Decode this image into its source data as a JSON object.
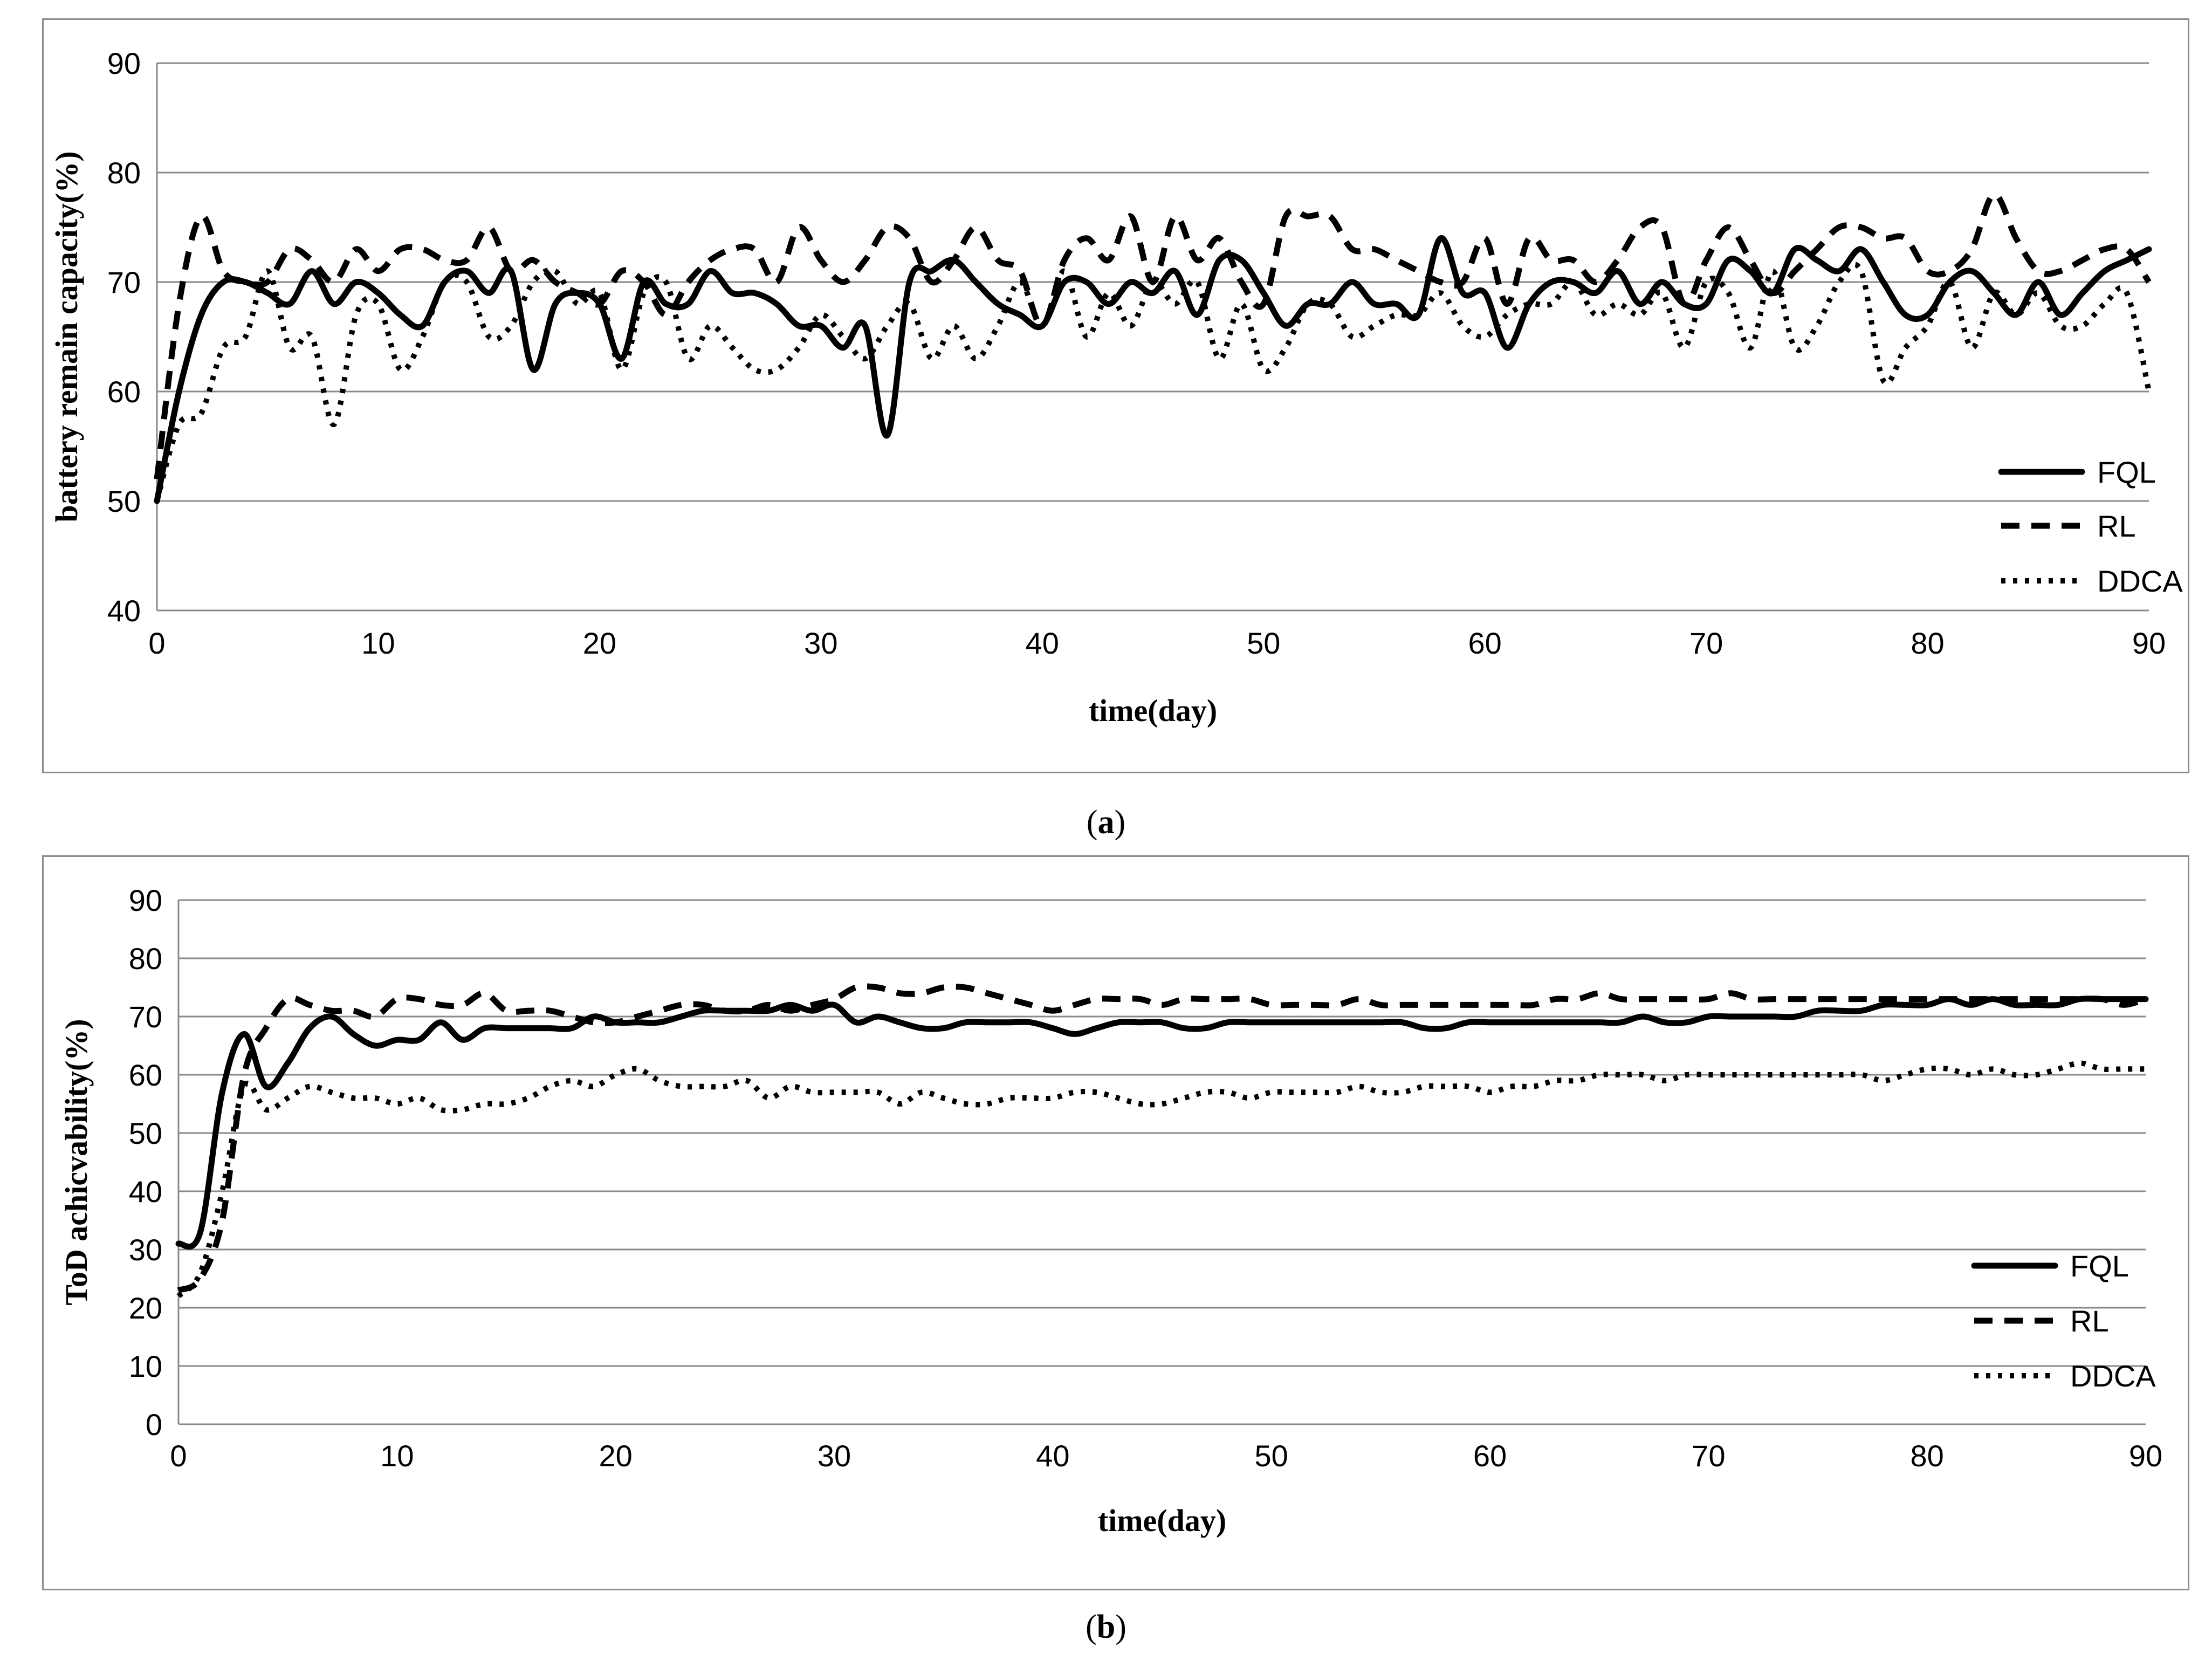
{
  "captions": {
    "a_open": "(",
    "a_letter": "a",
    "a_close": ")",
    "b_open": "(",
    "b_letter": "b",
    "b_close": ")"
  },
  "chart_data": [
    {
      "type": "line",
      "panel": "a",
      "xlabel": "time(day)",
      "ylabel": "battery remain  capacity(%)",
      "xlim": [
        0,
        90
      ],
      "ylim": [
        40,
        90
      ],
      "xticks": [
        0,
        10,
        20,
        30,
        40,
        50,
        60,
        70,
        80,
        90
      ],
      "yticks": [
        40,
        50,
        60,
        70,
        80,
        90
      ],
      "grid": "horizontal",
      "legend": "bottom-right",
      "series": [
        {
          "name": "FQL",
          "style": "solid",
          "x": [
            0,
            1,
            2,
            3,
            4,
            5,
            6,
            7,
            8,
            9,
            10,
            11,
            12,
            13,
            14,
            15,
            16,
            17,
            18,
            19,
            20,
            21,
            22,
            23,
            24,
            25,
            26,
            27,
            28,
            29,
            30,
            31,
            32,
            33,
            34,
            35,
            36,
            37,
            38,
            39,
            40,
            41,
            42,
            43,
            44,
            45,
            46,
            47,
            48,
            49,
            50,
            51,
            52,
            53,
            54,
            55,
            56,
            57,
            58,
            59,
            60,
            61,
            62,
            63,
            64,
            65,
            66,
            67,
            68,
            69,
            70,
            71,
            72,
            73,
            74,
            75,
            76,
            77,
            78,
            79,
            80,
            81,
            82,
            83,
            84,
            85,
            86,
            87,
            88,
            89,
            90
          ],
          "y": [
            50,
            60,
            67,
            70,
            70,
            69,
            68,
            71,
            68,
            70,
            69,
            67,
            66,
            70,
            71,
            69,
            71,
            62,
            68,
            69,
            68,
            63,
            70,
            68,
            68,
            71,
            69,
            69,
            68,
            66,
            66,
            64,
            66,
            56,
            70,
            71,
            72,
            70,
            68,
            67,
            66,
            70,
            70,
            68,
            70,
            69,
            71,
            67,
            72,
            72,
            69,
            66,
            68,
            68,
            70,
            68,
            68,
            67,
            74,
            69,
            69,
            64,
            68,
            70,
            70,
            69,
            71,
            68,
            70,
            68,
            68,
            72,
            71,
            69,
            73,
            72,
            71,
            73,
            70,
            67,
            67,
            70,
            71,
            69,
            67,
            70,
            67,
            69,
            71,
            72,
            73
          ]
        },
        {
          "name": "RL",
          "style": "dashed",
          "x": [
            0,
            1,
            2,
            3,
            4,
            5,
            6,
            7,
            8,
            9,
            10,
            11,
            12,
            13,
            14,
            15,
            16,
            17,
            18,
            19,
            20,
            21,
            22,
            23,
            24,
            25,
            26,
            27,
            28,
            29,
            30,
            31,
            32,
            33,
            34,
            35,
            36,
            37,
            38,
            39,
            40,
            41,
            42,
            43,
            44,
            45,
            46,
            47,
            48,
            49,
            50,
            51,
            52,
            53,
            54,
            55,
            56,
            57,
            58,
            59,
            60,
            61,
            62,
            63,
            64,
            65,
            66,
            67,
            68,
            69,
            70,
            71,
            72,
            73,
            74,
            75,
            76,
            77,
            78,
            79,
            80,
            81,
            82,
            83,
            84,
            85,
            86,
            87,
            88,
            89,
            90
          ],
          "y": [
            52,
            68,
            76,
            71,
            70,
            70,
            73,
            72,
            70,
            73,
            71,
            73,
            73,
            72,
            72,
            75,
            71,
            72,
            70,
            69,
            68,
            71,
            70,
            67,
            70,
            72,
            73,
            73,
            70,
            75,
            72,
            70,
            72,
            75,
            74,
            70,
            72,
            75,
            72,
            71,
            66,
            72,
            74,
            72,
            76,
            70,
            76,
            72,
            74,
            70,
            68,
            76,
            76,
            76,
            73,
            73,
            72,
            71,
            70,
            70,
            74,
            68,
            74,
            72,
            72,
            70,
            72,
            75,
            75,
            68,
            72,
            75,
            72,
            69,
            71,
            73,
            75,
            75,
            74,
            74,
            71,
            71,
            73,
            78,
            74,
            71,
            71,
            72,
            73,
            73,
            70
          ]
        },
        {
          "name": "DDCA",
          "style": "dotted",
          "x": [
            0,
            1,
            2,
            3,
            4,
            5,
            6,
            7,
            8,
            9,
            10,
            11,
            12,
            13,
            14,
            15,
            16,
            17,
            18,
            19,
            20,
            21,
            22,
            23,
            24,
            25,
            26,
            27,
            28,
            29,
            30,
            31,
            32,
            33,
            34,
            35,
            36,
            37,
            38,
            39,
            40,
            41,
            42,
            43,
            44,
            45,
            46,
            47,
            48,
            49,
            50,
            51,
            52,
            53,
            54,
            55,
            56,
            57,
            58,
            59,
            60,
            61,
            62,
            63,
            64,
            65,
            66,
            67,
            68,
            69,
            70,
            71,
            72,
            73,
            74,
            75,
            76,
            77,
            78,
            79,
            80,
            81,
            82,
            83,
            84,
            85,
            86,
            87,
            88,
            89,
            90
          ],
          "y": [
            50,
            57,
            58,
            64,
            65,
            71,
            64,
            65,
            57,
            67,
            68,
            62,
            65,
            70,
            70,
            65,
            66,
            70,
            71,
            68,
            69,
            62,
            69,
            70,
            63,
            66,
            64,
            62,
            62,
            64,
            67,
            65,
            63,
            66,
            68,
            63,
            66,
            63,
            66,
            70,
            66,
            71,
            65,
            69,
            66,
            70,
            68,
            70,
            63,
            68,
            62,
            64,
            68,
            68,
            65,
            66,
            67,
            67,
            69,
            66,
            65,
            67,
            68,
            68,
            70,
            67,
            68,
            67,
            69,
            64,
            70,
            69,
            64,
            71,
            64,
            66,
            70,
            71,
            61,
            64,
            66,
            70,
            64,
            69,
            67,
            69,
            66,
            66,
            68,
            69,
            60
          ]
        }
      ]
    },
    {
      "type": "line",
      "panel": "b",
      "xlabel": "time(day)",
      "ylabel": "ToD achicvability(%)",
      "xlim": [
        0,
        90
      ],
      "ylim": [
        0,
        90
      ],
      "xticks": [
        0,
        10,
        20,
        30,
        40,
        50,
        60,
        70,
        80,
        90
      ],
      "yticks": [
        0,
        10,
        20,
        30,
        40,
        50,
        60,
        70,
        80,
        90
      ],
      "grid": "horizontal",
      "legend": "middle-right",
      "series": [
        {
          "name": "FQL",
          "style": "solid",
          "x": [
            0,
            1,
            2,
            3,
            4,
            5,
            6,
            7,
            8,
            9,
            10,
            11,
            12,
            13,
            14,
            15,
            16,
            17,
            18,
            19,
            20,
            21,
            22,
            23,
            24,
            25,
            26,
            27,
            28,
            29,
            30,
            31,
            32,
            33,
            34,
            35,
            36,
            37,
            38,
            39,
            40,
            41,
            42,
            43,
            44,
            45,
            46,
            47,
            48,
            49,
            50,
            51,
            52,
            53,
            54,
            55,
            56,
            57,
            58,
            59,
            60,
            61,
            62,
            63,
            64,
            65,
            66,
            67,
            68,
            69,
            70,
            71,
            72,
            73,
            74,
            75,
            76,
            77,
            78,
            79,
            80,
            81,
            82,
            83,
            84,
            85,
            86,
            87,
            88,
            89,
            90
          ],
          "y": [
            31,
            33,
            57,
            67,
            58,
            62,
            68,
            70,
            67,
            65,
            66,
            66,
            69,
            66,
            68,
            68,
            68,
            68,
            68,
            70,
            69,
            69,
            69,
            70,
            71,
            71,
            71,
            71,
            72,
            71,
            72,
            69,
            70,
            69,
            68,
            68,
            69,
            69,
            69,
            69,
            68,
            67,
            68,
            69,
            69,
            69,
            68,
            68,
            69,
            69,
            69,
            69,
            69,
            69,
            69,
            69,
            69,
            68,
            68,
            69,
            69,
            69,
            69,
            69,
            69,
            69,
            69,
            70,
            69,
            69,
            70,
            70,
            70,
            70,
            70,
            71,
            71,
            71,
            72,
            72,
            72,
            73,
            72,
            73,
            72,
            72,
            72,
            73,
            73,
            73,
            73
          ]
        },
        {
          "name": "RL",
          "style": "dashed",
          "x": [
            0,
            1,
            2,
            3,
            4,
            5,
            6,
            7,
            8,
            9,
            10,
            11,
            12,
            13,
            14,
            15,
            16,
            17,
            18,
            19,
            20,
            21,
            22,
            23,
            24,
            25,
            26,
            27,
            28,
            29,
            30,
            31,
            32,
            33,
            34,
            35,
            36,
            37,
            38,
            39,
            40,
            41,
            42,
            43,
            44,
            45,
            46,
            47,
            48,
            49,
            50,
            51,
            52,
            53,
            54,
            55,
            56,
            57,
            58,
            59,
            60,
            61,
            62,
            63,
            64,
            65,
            66,
            67,
            68,
            69,
            70,
            71,
            72,
            73,
            74,
            75,
            76,
            77,
            78,
            79,
            80,
            81,
            82,
            83,
            84,
            85,
            86,
            87,
            88,
            89,
            90
          ],
          "y": [
            23,
            25,
            35,
            60,
            68,
            73,
            72,
            71,
            71,
            70,
            73,
            73,
            72,
            72,
            74,
            71,
            71,
            71,
            70,
            69,
            69,
            70,
            71,
            72,
            72,
            71,
            71,
            72,
            71,
            72,
            73,
            75,
            75,
            74,
            74,
            75,
            75,
            74,
            73,
            72,
            71,
            72,
            73,
            73,
            73,
            72,
            73,
            73,
            73,
            73,
            72,
            72,
            72,
            72,
            73,
            72,
            72,
            72,
            72,
            72,
            72,
            72,
            72,
            73,
            73,
            74,
            73,
            73,
            73,
            73,
            73,
            74,
            73,
            73,
            73,
            73,
            73,
            73,
            73,
            73,
            73,
            73,
            73,
            73,
            73,
            73,
            73,
            73,
            73,
            72,
            73
          ]
        },
        {
          "name": "DDCA",
          "style": "dotted",
          "x": [
            0,
            1,
            2,
            3,
            4,
            5,
            6,
            7,
            8,
            9,
            10,
            11,
            12,
            13,
            14,
            15,
            16,
            17,
            18,
            19,
            20,
            21,
            22,
            23,
            24,
            25,
            26,
            27,
            28,
            29,
            30,
            31,
            32,
            33,
            34,
            35,
            36,
            37,
            38,
            39,
            40,
            41,
            42,
            43,
            44,
            45,
            46,
            47,
            48,
            49,
            50,
            51,
            52,
            53,
            54,
            55,
            56,
            57,
            58,
            59,
            60,
            61,
            62,
            63,
            64,
            65,
            66,
            67,
            68,
            69,
            70,
            71,
            72,
            73,
            74,
            75,
            76,
            77,
            78,
            79,
            80,
            81,
            82,
            83,
            84,
            85,
            86,
            87,
            88,
            89,
            90
          ],
          "y": [
            22,
            26,
            40,
            58,
            54,
            56,
            58,
            57,
            56,
            56,
            55,
            56,
            54,
            54,
            55,
            55,
            56,
            58,
            59,
            58,
            60,
            61,
            59,
            58,
            58,
            58,
            59,
            56,
            58,
            57,
            57,
            57,
            57,
            55,
            57,
            56,
            55,
            55,
            56,
            56,
            56,
            57,
            57,
            56,
            55,
            55,
            56,
            57,
            57,
            56,
            57,
            57,
            57,
            57,
            58,
            57,
            57,
            58,
            58,
            58,
            57,
            58,
            58,
            59,
            59,
            60,
            60,
            60,
            59,
            60,
            60,
            60,
            60,
            60,
            60,
            60,
            60,
            60,
            59,
            60,
            61,
            61,
            60,
            61,
            60,
            60,
            61,
            62,
            61,
            61,
            61
          ]
        }
      ]
    }
  ]
}
